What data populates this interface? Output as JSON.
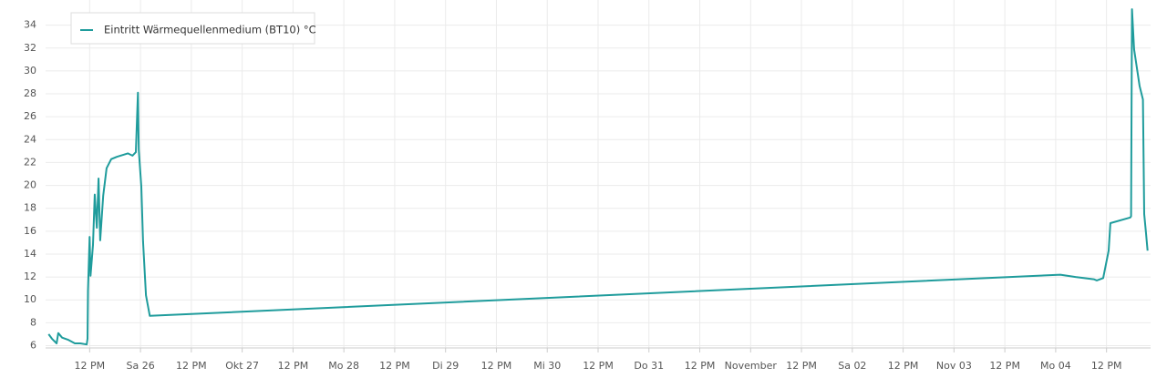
{
  "chart_data": {
    "type": "line",
    "x": [
      -21.7,
      -20.9,
      -19.8,
      -19.4,
      -18.5,
      -17.0,
      -15.5,
      -14.2,
      -12.7,
      -12.5,
      -12.4,
      -12.0,
      -11.8,
      -11.2,
      -10.8,
      -10.3,
      -9.9,
      -9.5,
      -8.8,
      -8.0,
      -6.9,
      -5.6,
      -3.0,
      -1.9,
      -1.1,
      -0.6,
      -0.4,
      0.2,
      0.6,
      1.3,
      2.2,
      217.1,
      220.7,
      225.0,
      225.7,
      227.2,
      228.5,
      228.9,
      233.6,
      233.8,
      234.0,
      234.5,
      235.8,
      236.6,
      236.9,
      237.3,
      237.7
    ],
    "series": [
      {
        "name": "Eintritt Wärmequellenmedium (BT10) °C",
        "color": "#1f9c9c",
        "values": [
          7.0,
          6.6,
          6.2,
          7.1,
          6.7,
          6.5,
          6.2,
          6.2,
          6.1,
          6.6,
          10.8,
          15.5,
          12.1,
          14.8,
          19.2,
          16.3,
          20.6,
          15.2,
          19.1,
          21.5,
          22.3,
          22.5,
          22.8,
          22.6,
          22.9,
          28.1,
          23.1,
          19.9,
          15.1,
          10.4,
          8.6,
          12.2,
          12.0,
          11.8,
          11.7,
          11.9,
          14.3,
          16.7,
          17.2,
          17.3,
          35.4,
          31.9,
          28.7,
          27.5,
          17.5,
          15.9,
          14.3
        ]
      }
    ],
    "xlim": [
      -22.4,
      238.4
    ],
    "xticks": [
      {
        "value": -12,
        "label": "12 PM"
      },
      {
        "value": 0,
        "label": "Sa 26"
      },
      {
        "value": 12,
        "label": "12 PM"
      },
      {
        "value": 24,
        "label": "Okt 27"
      },
      {
        "value": 36,
        "label": "12 PM"
      },
      {
        "value": 48,
        "label": "Mo 28"
      },
      {
        "value": 60,
        "label": "12 PM"
      },
      {
        "value": 72,
        "label": "Di 29"
      },
      {
        "value": 84,
        "label": "12 PM"
      },
      {
        "value": 96,
        "label": "Mi 30"
      },
      {
        "value": 108,
        "label": "12 PM"
      },
      {
        "value": 120,
        "label": "Do 31"
      },
      {
        "value": 132,
        "label": "12 PM"
      },
      {
        "value": 144,
        "label": "November"
      },
      {
        "value": 156,
        "label": "12 PM"
      },
      {
        "value": 168,
        "label": "Sa 02"
      },
      {
        "value": 180,
        "label": "12 PM"
      },
      {
        "value": 192,
        "label": "Nov 03"
      },
      {
        "value": 204,
        "label": "12 PM"
      },
      {
        "value": 216,
        "label": "Mo 04"
      },
      {
        "value": 228,
        "label": "12 PM"
      }
    ],
    "ylim": [
      5.8,
      36.2
    ],
    "yticks": [
      6,
      8,
      10,
      12,
      14,
      16,
      18,
      20,
      22,
      24,
      26,
      28,
      30,
      32,
      34
    ],
    "grid": true
  }
}
